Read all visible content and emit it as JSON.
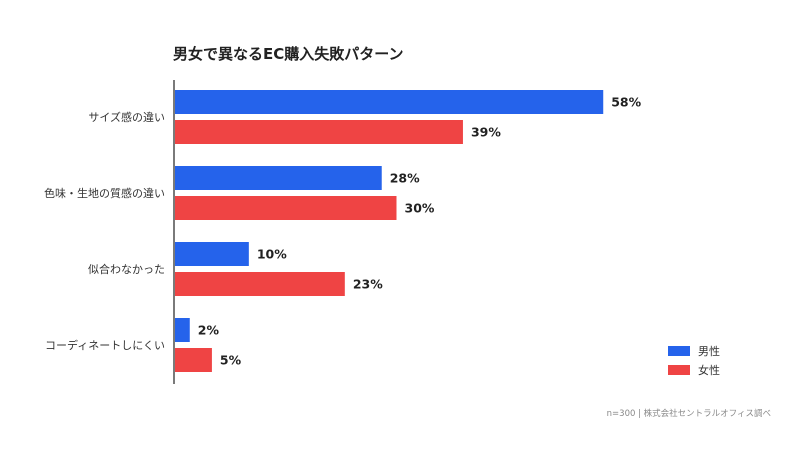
{
  "chart_data": {
    "type": "bar",
    "orientation": "horizontal",
    "title": "男女で異なるEC購入失敗パターン",
    "categories": [
      "サイズ感の違い",
      "色味・生地の質感の違い",
      "似合わなかった",
      "コーディネートしにくい"
    ],
    "series": [
      {
        "name": "男性",
        "color": "#2563eb",
        "values": [
          58,
          28,
          10,
          2
        ]
      },
      {
        "name": "女性",
        "color": "#ef4444",
        "values": [
          39,
          30,
          23,
          5
        ]
      }
    ],
    "value_suffix": "%",
    "xlim": [
      0,
      60
    ],
    "grid": false,
    "legend_position": "bottom-right",
    "source": "n=300 | 株式会社セントラルオフィス調べ"
  }
}
